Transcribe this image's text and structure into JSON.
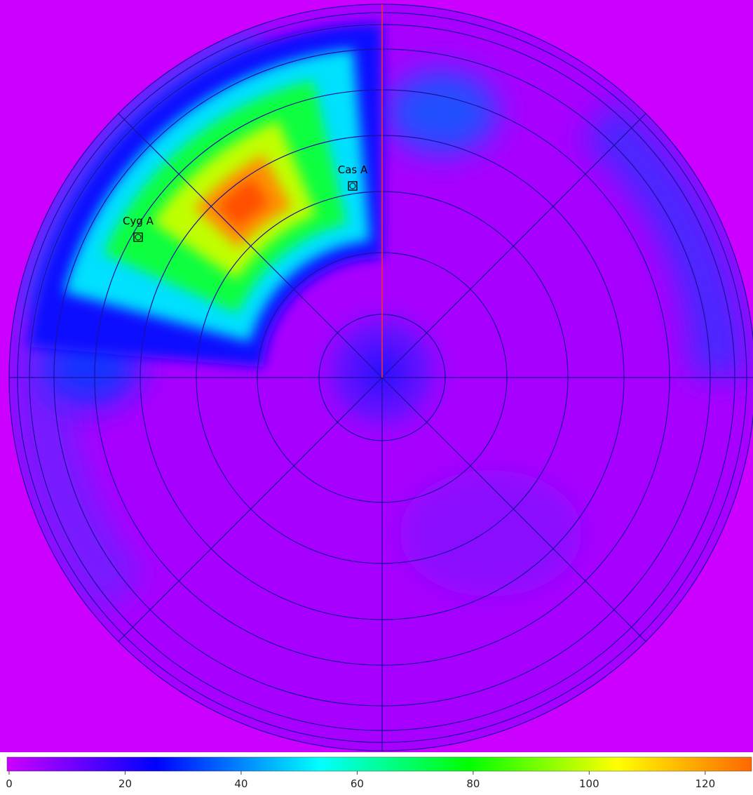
{
  "sky_map": {
    "sources": [
      {
        "label": "Cas A"
      },
      {
        "label": "Cyg A"
      }
    ],
    "colorbar": {
      "range": [
        0,
        128
      ],
      "ticks": [
        0,
        20,
        40,
        60,
        80,
        100,
        120
      ]
    }
  }
}
